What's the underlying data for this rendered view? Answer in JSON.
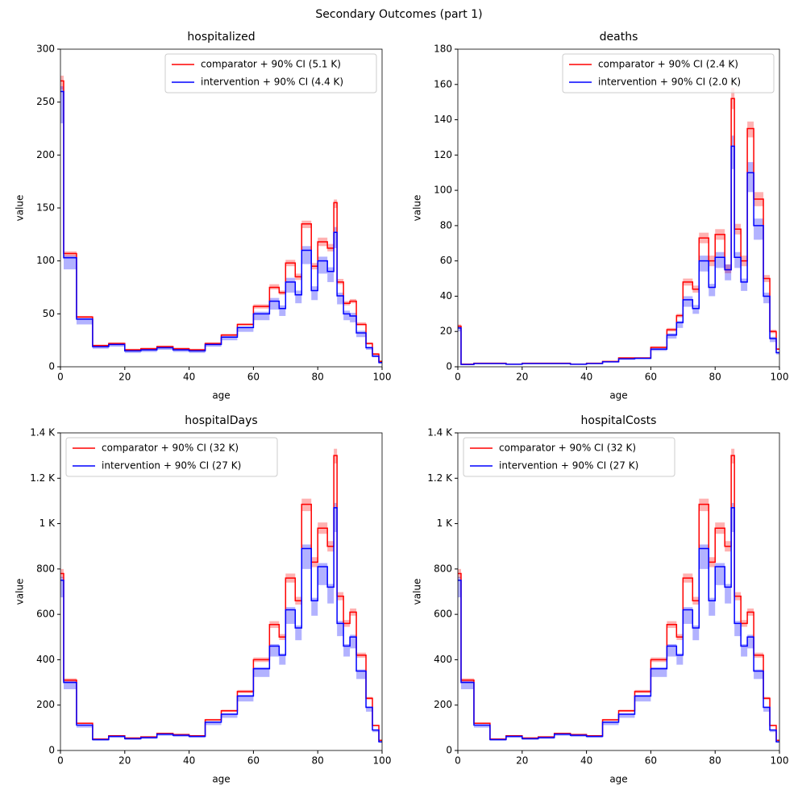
{
  "title": "Secondary Outcomes (part 1)",
  "chart_data": [
    {
      "type": "step",
      "title": "hospitalized",
      "xlabel": "age",
      "ylabel": "value",
      "legend": "upper right",
      "x": [
        0,
        1,
        5,
        10,
        15,
        20,
        25,
        30,
        35,
        40,
        45,
        50,
        55,
        60,
        65,
        68,
        70,
        73,
        75,
        78,
        80,
        83,
        85,
        86,
        88,
        90,
        92,
        95,
        97,
        99
      ],
      "xlim": [
        0,
        100
      ],
      "xticks": [
        0,
        20,
        40,
        60,
        80,
        100
      ],
      "ylim": [
        0,
        300
      ],
      "yticks": [
        0,
        50,
        100,
        150,
        200,
        250,
        300
      ],
      "series": [
        {
          "name": "comparator + 90% CI (5.1 K)",
          "color": "#ff0000",
          "band_color": "#ff0000",
          "values": [
            270,
            107,
            47,
            20,
            22,
            16,
            17,
            19,
            17,
            16,
            22,
            30,
            40,
            57,
            75,
            70,
            98,
            85,
            135,
            95,
            118,
            112,
            155,
            80,
            60,
            62,
            40,
            22,
            12,
            5
          ],
          "ci_lower": [
            262,
            104,
            46,
            19,
            21,
            15,
            16,
            18,
            16,
            15,
            21,
            29,
            39,
            55,
            73,
            68,
            95,
            82,
            131,
            92,
            114,
            109,
            150,
            78,
            58,
            60,
            39,
            21,
            11,
            5
          ],
          "ci_upper": [
            275,
            109,
            48,
            21,
            23,
            17,
            18,
            20,
            18,
            17,
            23,
            31,
            41,
            59,
            78,
            72,
            101,
            88,
            138,
            98,
            122,
            116,
            158,
            83,
            62,
            64,
            42,
            23,
            13,
            6
          ]
        },
        {
          "name": "intervention + 90% CI (4.4 K)",
          "color": "#0000ff",
          "band_color": "#0000ff",
          "values": [
            260,
            103,
            45,
            19,
            21,
            15,
            16,
            18,
            16,
            15,
            21,
            28,
            37,
            50,
            62,
            55,
            80,
            68,
            110,
            72,
            100,
            90,
            127,
            67,
            50,
            48,
            32,
            18,
            10,
            4
          ],
          "ci_lower": [
            230,
            92,
            40,
            17,
            19,
            13,
            14,
            16,
            14,
            13,
            19,
            25,
            33,
            44,
            54,
            48,
            70,
            60,
            97,
            63,
            88,
            80,
            112,
            59,
            44,
            42,
            28,
            16,
            9,
            3
          ],
          "ci_upper": [
            265,
            105,
            46,
            20,
            22,
            16,
            17,
            19,
            17,
            16,
            22,
            29,
            38,
            52,
            65,
            58,
            84,
            72,
            114,
            76,
            104,
            94,
            132,
            70,
            53,
            51,
            34,
            19,
            11,
            5
          ]
        }
      ]
    },
    {
      "type": "step",
      "title": "deaths",
      "xlabel": "age",
      "ylabel": "value",
      "legend": "upper right",
      "x": [
        0,
        1,
        5,
        10,
        15,
        20,
        25,
        30,
        35,
        40,
        45,
        50,
        55,
        60,
        65,
        68,
        70,
        73,
        75,
        78,
        80,
        83,
        85,
        86,
        88,
        90,
        92,
        95,
        97,
        99
      ],
      "xlim": [
        0,
        100
      ],
      "xticks": [
        0,
        20,
        40,
        60,
        80,
        100
      ],
      "ylim": [
        0,
        180
      ],
      "yticks": [
        0,
        20,
        40,
        60,
        80,
        100,
        120,
        140,
        160,
        180
      ],
      "series": [
        {
          "name": "comparator + 90% CI (2.4 K)",
          "color": "#ff0000",
          "band_color": "#ff0000",
          "values": [
            23,
            1.5,
            2,
            2,
            1.5,
            2,
            2,
            2,
            1.5,
            2,
            3,
            5,
            5,
            11,
            21,
            29,
            48,
            44,
            73,
            60,
            75,
            55,
            152,
            78,
            60,
            135,
            95,
            50,
            20,
            10
          ],
          "ci_lower": [
            22,
            1.4,
            1.9,
            1.9,
            1.4,
            1.9,
            1.9,
            1.9,
            1.4,
            1.9,
            2.9,
            4.8,
            4.8,
            10.5,
            20,
            28,
            46,
            42,
            70,
            57,
            72,
            53,
            146,
            75,
            57,
            130,
            91,
            48,
            19,
            9.5
          ],
          "ci_upper": [
            24,
            1.6,
            2.1,
            2.1,
            1.6,
            2.1,
            2.1,
            2.1,
            1.6,
            2.1,
            3.1,
            5.2,
            5.2,
            11.5,
            22,
            30,
            50,
            46,
            76,
            63,
            78,
            58,
            158,
            81,
            63,
            139,
            99,
            52,
            21,
            10.5
          ]
        },
        {
          "name": "intervention + 90% CI (2.0 K)",
          "color": "#0000ff",
          "band_color": "#0000ff",
          "values": [
            22,
            1.3,
            1.8,
            1.8,
            1.4,
            1.8,
            1.8,
            1.8,
            1.4,
            1.8,
            2.8,
            4.5,
            4.8,
            10,
            18,
            25,
            38,
            33,
            60,
            45,
            62,
            55,
            125,
            62,
            48,
            110,
            80,
            40,
            16,
            8
          ],
          "ci_lower": [
            20,
            1.2,
            1.6,
            1.6,
            1.3,
            1.6,
            1.6,
            1.6,
            1.3,
            1.6,
            2.5,
            4,
            4.3,
            9,
            16,
            22,
            34,
            30,
            54,
            40,
            56,
            49,
            112,
            56,
            43,
            99,
            72,
            36,
            14,
            7
          ],
          "ci_upper": [
            23,
            1.4,
            1.9,
            1.9,
            1.5,
            1.9,
            1.9,
            1.9,
            1.5,
            1.9,
            2.9,
            4.7,
            5,
            10.5,
            19,
            26,
            40,
            35,
            63,
            47,
            65,
            58,
            131,
            65,
            50,
            116,
            84,
            42,
            17,
            8.5
          ]
        }
      ]
    },
    {
      "type": "step",
      "title": "hospitalDays",
      "xlabel": "age",
      "ylabel": "value",
      "legend": "upper left",
      "x": [
        0,
        1,
        5,
        10,
        15,
        20,
        25,
        30,
        35,
        40,
        45,
        50,
        55,
        60,
        65,
        68,
        70,
        73,
        75,
        78,
        80,
        83,
        85,
        86,
        88,
        90,
        92,
        95,
        97,
        99
      ],
      "xlim": [
        0,
        100
      ],
      "xticks": [
        0,
        20,
        40,
        60,
        80,
        100
      ],
      "ylim": [
        0,
        1400
      ],
      "yticks": [
        0,
        200,
        400,
        600,
        800,
        {
          "value": 1000,
          "label": "1 K"
        },
        {
          "value": 1200,
          "label": "1.2 K"
        },
        {
          "value": 1400,
          "label": "1.4 K"
        }
      ],
      "series": [
        {
          "name": "comparator + 90% CI (32 K)",
          "color": "#ff0000",
          "band_color": "#ff0000",
          "values": [
            780,
            310,
            120,
            50,
            65,
            55,
            60,
            75,
            70,
            65,
            135,
            175,
            260,
            400,
            555,
            500,
            760,
            660,
            1085,
            830,
            980,
            900,
            1300,
            680,
            560,
            610,
            420,
            230,
            110,
            45
          ],
          "ci_lower": [
            760,
            302,
            117,
            48,
            63,
            53,
            58,
            73,
            68,
            63,
            131,
            170,
            253,
            390,
            540,
            487,
            740,
            643,
            1055,
            808,
            955,
            877,
            1265,
            662,
            545,
            594,
            409,
            224,
            107,
            44
          ],
          "ci_upper": [
            800,
            318,
            123,
            52,
            67,
            57,
            62,
            77,
            72,
            67,
            139,
            180,
            267,
            410,
            570,
            513,
            780,
            677,
            1110,
            852,
            1005,
            923,
            1330,
            698,
            575,
            626,
            431,
            236,
            113,
            46
          ]
        },
        {
          "name": "intervention + 90% CI (27 K)",
          "color": "#0000ff",
          "band_color": "#0000ff",
          "values": [
            750,
            300,
            112,
            48,
            62,
            52,
            57,
            72,
            67,
            62,
            125,
            160,
            240,
            360,
            460,
            420,
            620,
            540,
            890,
            660,
            810,
            720,
            1070,
            560,
            460,
            500,
            350,
            190,
            90,
            38
          ],
          "ci_lower": [
            675,
            270,
            101,
            43,
            56,
            47,
            51,
            65,
            60,
            56,
            112,
            144,
            216,
            324,
            414,
            378,
            558,
            486,
            800,
            594,
            729,
            648,
            963,
            504,
            414,
            450,
            315,
            171,
            81,
            34
          ],
          "ci_upper": [
            765,
            306,
            114,
            49,
            63,
            53,
            58,
            73,
            68,
            63,
            128,
            163,
            245,
            367,
            469,
            428,
            632,
            551,
            908,
            673,
            826,
            734,
            1091,
            571,
            469,
            510,
            357,
            194,
            92,
            39
          ]
        }
      ]
    },
    {
      "type": "step",
      "title": "hospitalCosts",
      "xlabel": "age",
      "ylabel": "value",
      "legend": "upper left",
      "x": [
        0,
        1,
        5,
        10,
        15,
        20,
        25,
        30,
        35,
        40,
        45,
        50,
        55,
        60,
        65,
        68,
        70,
        73,
        75,
        78,
        80,
        83,
        85,
        86,
        88,
        90,
        92,
        95,
        97,
        99
      ],
      "xlim": [
        0,
        100
      ],
      "xticks": [
        0,
        20,
        40,
        60,
        80,
        100
      ],
      "ylim": [
        0,
        1400
      ],
      "yticks": [
        0,
        200,
        400,
        600,
        800,
        {
          "value": 1000,
          "label": "1 K"
        },
        {
          "value": 1200,
          "label": "1.2 K"
        },
        {
          "value": 1400,
          "label": "1.4 K"
        }
      ],
      "series": [
        {
          "name": "comparator + 90% CI (32 K)",
          "color": "#ff0000",
          "band_color": "#ff0000",
          "values": [
            780,
            310,
            120,
            50,
            65,
            55,
            60,
            75,
            70,
            65,
            135,
            175,
            260,
            400,
            555,
            500,
            760,
            660,
            1085,
            830,
            980,
            900,
            1300,
            680,
            560,
            610,
            420,
            230,
            110,
            45
          ],
          "ci_lower": [
            760,
            302,
            117,
            48,
            63,
            53,
            58,
            73,
            68,
            63,
            131,
            170,
            253,
            390,
            540,
            487,
            740,
            643,
            1055,
            808,
            955,
            877,
            1265,
            662,
            545,
            594,
            409,
            224,
            107,
            44
          ],
          "ci_upper": [
            800,
            318,
            123,
            52,
            67,
            57,
            62,
            77,
            72,
            67,
            139,
            180,
            267,
            410,
            570,
            513,
            780,
            677,
            1110,
            852,
            1005,
            923,
            1330,
            698,
            575,
            626,
            431,
            236,
            113,
            46
          ]
        },
        {
          "name": "intervention + 90% CI (27 K)",
          "color": "#0000ff",
          "band_color": "#0000ff",
          "values": [
            750,
            300,
            112,
            48,
            62,
            52,
            57,
            72,
            67,
            62,
            125,
            160,
            240,
            360,
            460,
            420,
            620,
            540,
            890,
            660,
            810,
            720,
            1070,
            560,
            460,
            500,
            350,
            190,
            90,
            38
          ],
          "ci_lower": [
            675,
            270,
            101,
            43,
            56,
            47,
            51,
            65,
            60,
            56,
            112,
            144,
            216,
            324,
            414,
            378,
            558,
            486,
            800,
            594,
            729,
            648,
            963,
            504,
            414,
            450,
            315,
            171,
            81,
            34
          ],
          "ci_upper": [
            765,
            306,
            114,
            49,
            63,
            53,
            58,
            73,
            68,
            63,
            128,
            163,
            245,
            367,
            469,
            428,
            632,
            551,
            908,
            673,
            826,
            734,
            1091,
            571,
            469,
            510,
            357,
            194,
            92,
            39
          ]
        }
      ]
    }
  ]
}
